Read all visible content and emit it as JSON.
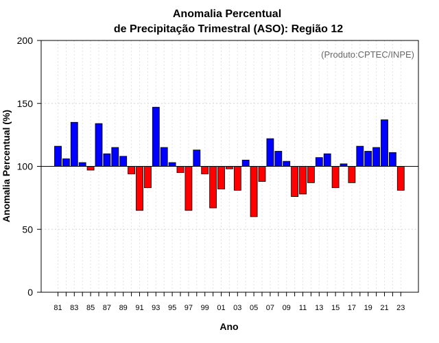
{
  "chart_data": {
    "type": "bar",
    "title_line1": "Anomalia Percentual",
    "title_line2": "de Precipitação Trimestral (ASO): Região 12",
    "xlabel": "Ano",
    "ylabel": "Anomalia Percentual (%)",
    "credit": "(Produto:CPTEC/INPE)",
    "ylim": [
      0,
      200
    ],
    "yticks": [
      0,
      50,
      100,
      150,
      200
    ],
    "baseline": 100,
    "grid": true,
    "positive_color": "#0000ff",
    "negative_color": "#ff0000",
    "categories": [
      "81",
      "82",
      "83",
      "84",
      "85",
      "86",
      "87",
      "88",
      "89",
      "90",
      "91",
      "92",
      "93",
      "94",
      "95",
      "96",
      "97",
      "98",
      "99",
      "00",
      "01",
      "02",
      "03",
      "04",
      "05",
      "06",
      "07",
      "08",
      "09",
      "10",
      "11",
      "12",
      "13",
      "14",
      "15",
      "16",
      "17",
      "18",
      "19",
      "20",
      "21",
      "22",
      "23"
    ],
    "xtick_labels": [
      "81",
      "83",
      "85",
      "87",
      "89",
      "91",
      "93",
      "95",
      "97",
      "99",
      "01",
      "03",
      "05",
      "07",
      "09",
      "11",
      "13",
      "15",
      "17",
      "19",
      "21",
      "23"
    ],
    "values": [
      116,
      106,
      135,
      103,
      97,
      134,
      110,
      115,
      108,
      94,
      65,
      83,
      147,
      115,
      103,
      95,
      65,
      113,
      94,
      67,
      82,
      98,
      81,
      105,
      60,
      88,
      122,
      112,
      104,
      76,
      78,
      87,
      107,
      110,
      83,
      102,
      87,
      116,
      112,
      115,
      137,
      111,
      81
    ]
  }
}
